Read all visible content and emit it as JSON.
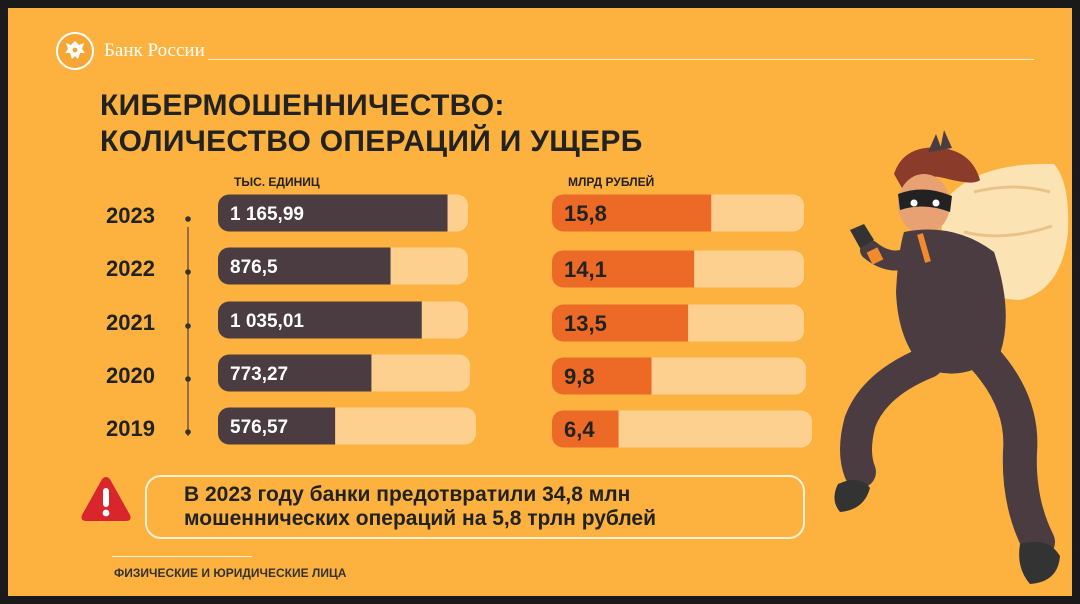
{
  "header": {
    "brand": "Банк России",
    "logo_icon": "eagle-emblem-icon"
  },
  "title": {
    "line1": "КИБЕРМОШЕННИЧЕСТВО:",
    "line2": "КОЛИЧЕСТВО ОПЕРАЦИЙ И УЩЕРБ"
  },
  "chart_data": [
    {
      "type": "bar",
      "ylabel": "ТЫС. ЕДИНИЦ",
      "categories": [
        "2023",
        "2022",
        "2021",
        "2020",
        "2019"
      ],
      "values": [
        1165.99,
        876.5,
        1035.01,
        773.27,
        576.57
      ],
      "value_labels": [
        "1 165,99",
        "876,5",
        "1 035,01",
        "773,27",
        "576,57"
      ],
      "fill_color": "#4A3C41",
      "track_color": "#FDD08F"
    },
    {
      "type": "bar",
      "ylabel": "МЛРД РУБЛЕЙ",
      "categories": [
        "2023",
        "2022",
        "2021",
        "2020",
        "2019"
      ],
      "values": [
        15.8,
        14.1,
        13.5,
        9.8,
        6.4
      ],
      "value_labels": [
        "15,8",
        "14,1",
        "13,5",
        "9,8",
        "6,4"
      ],
      "fill_color": "#EC6A25",
      "track_color": "#FDD08F"
    }
  ],
  "alert": {
    "icon": "warning-triangle-icon",
    "line1": "В 2023 году банки предотвратили 34,8 млн",
    "line2": "мошеннических операций на 5,8 трлн рублей"
  },
  "footnote": "ФИЗИЧЕСКИЕ И ЮРИДИЧЕСКИЕ ЛИЦА",
  "illustration": "masked-thief-with-sack-illustration",
  "colors": {
    "background": "#FDB240",
    "dark": "#4A3C41",
    "orange": "#EC6A25",
    "track": "#FDD08F",
    "alert_red": "#D9262C"
  }
}
